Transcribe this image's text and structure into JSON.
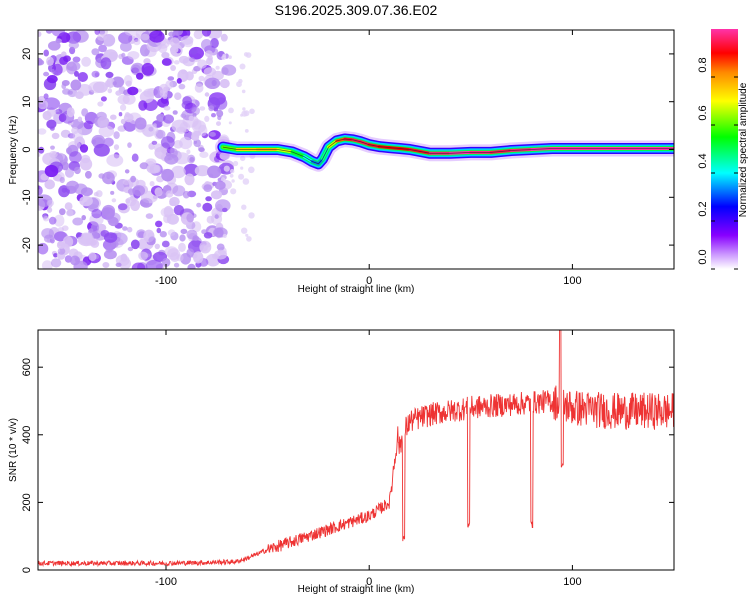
{
  "title": "S196.2025.309.07.36.E02",
  "chart_data": [
    {
      "type": "heatmap",
      "title": "S196.2025.309.07.36.E02",
      "xlabel": "Height of straight line (km)",
      "ylabel": "Frequency (Hz)",
      "xlim": [
        -163,
        150
      ],
      "ylim": [
        -25,
        25
      ],
      "x_ticks": [
        -100,
        0,
        100
      ],
      "y_ticks": [
        -20,
        -10,
        0,
        10,
        20
      ],
      "noise_region_x": [
        -163,
        -72
      ],
      "colorbar": {
        "label": "Normalized spectral amplitude",
        "range": [
          0,
          1
        ],
        "ticks": [
          "0.0",
          "0.2",
          "0.4",
          "0.6",
          "0.8"
        ]
      },
      "ridge": {
        "x": [
          -72,
          -65,
          -55,
          -45,
          -38,
          -32,
          -28,
          -25,
          -23,
          -20,
          -16,
          -12,
          -8,
          -4,
          0,
          5,
          10,
          15,
          20,
          30,
          40,
          50,
          60,
          70,
          80,
          90,
          100,
          110,
          120,
          130,
          140,
          150
        ],
        "y": [
          0.5,
          0,
          0,
          0,
          -0.5,
          -1.5,
          -2.5,
          -3,
          -2,
          0.5,
          1.8,
          2.2,
          2,
          1.6,
          1,
          0.6,
          0.4,
          0.2,
          0,
          -0.8,
          -0.8,
          -0.6,
          -0.6,
          -0.2,
          0,
          0.2,
          0.2,
          0.2,
          0.2,
          0.2,
          0.2,
          0.2
        ],
        "amplitude": [
          0.5,
          0.7,
          0.8,
          0.75,
          0.6,
          0.45,
          0.35,
          0.3,
          0.35,
          0.55,
          0.8,
          0.9,
          0.95,
          0.95,
          0.95,
          0.9,
          0.9,
          0.9,
          0.9,
          0.95,
          1,
          1,
          0.95,
          0.95,
          1,
          1,
          1,
          1,
          1,
          1,
          1,
          1
        ]
      }
    },
    {
      "type": "line",
      "title": "",
      "xlabel": "Height of straight line (km)",
      "ylabel": "SNR (10 * v/v)",
      "xlim": [
        -163,
        150
      ],
      "ylim": [
        0,
        710
      ],
      "x_ticks": [
        -100,
        0,
        100
      ],
      "y_ticks": [
        0,
        200,
        400,
        600
      ],
      "series": [
        {
          "name": "SNR",
          "color": "#ee3333",
          "x": [
            -163,
            -130,
            -100,
            -80,
            -65,
            -60,
            -50,
            -40,
            -30,
            -20,
            -10,
            0,
            5,
            10,
            12,
            14,
            15,
            17,
            20,
            30,
            50,
            70,
            90,
            95,
            100,
            120,
            150
          ],
          "y": [
            20,
            20,
            20,
            22,
            25,
            35,
            60,
            80,
            100,
            120,
            140,
            160,
            180,
            200,
            300,
            400,
            360,
            410,
            440,
            460,
            480,
            490,
            500,
            490,
            480,
            470,
            470
          ]
        }
      ],
      "dips": [
        {
          "x": 17,
          "y": 85
        },
        {
          "x": 49,
          "y": 125
        },
        {
          "x": 80,
          "y": 125
        },
        {
          "x": 95,
          "y": 300
        }
      ],
      "spike": {
        "x": 94,
        "y": 710
      }
    }
  ]
}
